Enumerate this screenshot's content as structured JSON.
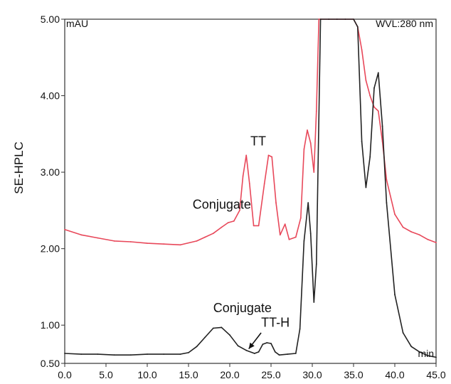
{
  "chart_data": {
    "type": "line",
    "title": "",
    "xlabel": "",
    "ylabel": "SE-HPLC",
    "x_unit_label": "min",
    "y_unit_label": "mAU",
    "wavelength_label": "WVL:280 nm",
    "xlim": [
      0,
      45
    ],
    "ylim": [
      0.5,
      5
    ],
    "x_ticks": [
      "0.0",
      "5.0",
      "10.0",
      "15.0",
      "20.0",
      "25.0",
      "30.0",
      "35.0",
      "40.0",
      "45.0"
    ],
    "y_ticks": [
      {
        "value": 0.5,
        "label": "0.50"
      },
      {
        "value": 1.0,
        "label": "1.00"
      },
      {
        "value": 2.0,
        "label": "2.00"
      },
      {
        "value": 3.0,
        "label": "3.00"
      },
      {
        "value": 4.0,
        "label": "4.00"
      },
      {
        "value": 5.0,
        "label": "5.00"
      }
    ],
    "grid": false,
    "legend": "none",
    "series": [
      {
        "color": "#e8485a",
        "x": [
          0,
          2,
          4,
          6,
          8,
          10,
          12,
          14,
          16,
          17,
          18,
          19,
          19.8,
          20.5,
          21.2,
          21.6,
          22,
          22.4,
          22.9,
          23.5,
          24.2,
          24.7,
          25.1,
          25.6,
          26.1,
          26.7,
          27.2,
          28,
          28.6,
          29,
          29.4,
          29.8,
          30.2,
          30.5,
          30.8,
          31,
          32,
          33,
          34,
          35,
          35.5,
          36,
          36.5,
          37,
          37.5,
          37.8,
          38,
          38.5,
          39,
          40,
          41,
          42,
          43,
          44,
          45
        ],
        "y": [
          2.25,
          2.18,
          2.14,
          2.1,
          2.09,
          2.07,
          2.06,
          2.05,
          2.1,
          2.15,
          2.2,
          2.28,
          2.34,
          2.36,
          2.5,
          2.95,
          3.22,
          2.85,
          2.3,
          2.3,
          2.85,
          3.22,
          3.2,
          2.6,
          2.18,
          2.32,
          2.12,
          2.15,
          2.4,
          3.3,
          3.55,
          3.38,
          3.0,
          3.8,
          5.0,
          5.0,
          5.0,
          5.0,
          5.0,
          5.0,
          4.9,
          4.6,
          4.2,
          4.0,
          3.85,
          3.82,
          3.8,
          3.4,
          2.9,
          2.45,
          2.28,
          2.22,
          2.18,
          2.12,
          2.08
        ]
      },
      {
        "color": "#222222",
        "x": [
          0,
          2,
          4,
          6,
          8,
          10,
          12,
          14,
          15,
          16,
          17,
          18,
          19,
          20,
          21,
          22,
          23,
          23.5,
          24,
          24.5,
          25,
          25.5,
          26,
          27,
          28,
          28.5,
          29,
          29.5,
          29.8,
          30.2,
          30.5,
          31,
          32,
          33,
          34,
          35,
          35.5,
          36,
          36.5,
          37,
          37.5,
          38,
          38.5,
          39,
          40,
          41,
          42,
          43,
          44,
          45
        ],
        "y": [
          0.63,
          0.62,
          0.62,
          0.61,
          0.61,
          0.62,
          0.62,
          0.62,
          0.64,
          0.72,
          0.84,
          0.96,
          0.97,
          0.87,
          0.73,
          0.67,
          0.63,
          0.65,
          0.75,
          0.77,
          0.76,
          0.65,
          0.61,
          0.62,
          0.63,
          0.95,
          2.1,
          2.6,
          2.2,
          1.3,
          1.8,
          5.0,
          5.0,
          5.0,
          5.0,
          5.0,
          4.9,
          3.4,
          2.8,
          3.2,
          4.1,
          4.3,
          3.6,
          2.6,
          1.4,
          0.9,
          0.72,
          0.65,
          0.6,
          0.58
        ]
      }
    ],
    "annotations": [
      {
        "text": "TT",
        "x": 22.5,
        "y": 3.35
      },
      {
        "text": "Conjugate",
        "x": 15.5,
        "y": 2.52
      },
      {
        "text": "Conjugate",
        "x": 18,
        "y": 1.17
      },
      {
        "text": "TT-H",
        "x": 23.8,
        "y": 0.98
      }
    ]
  }
}
